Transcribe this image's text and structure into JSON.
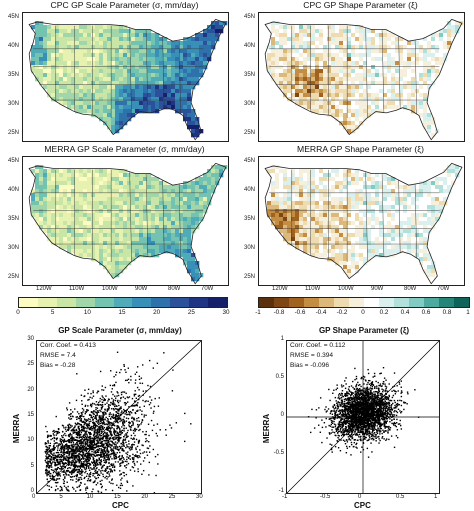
{
  "maps": [
    {
      "title": "CPC GP Scale Parameter (σ, mm/day)",
      "field": "scale",
      "variant": "cpc"
    },
    {
      "title": "CPC GP Shape Parameter (ξ)",
      "field": "shape",
      "variant": "cpc"
    },
    {
      "title": "MERRA GP Scale Parameter (σ, mm/day)",
      "field": "scale",
      "variant": "merra"
    },
    {
      "title": "MERRA GP Shape Parameter (ξ)",
      "field": "shape",
      "variant": "merra"
    }
  ],
  "lat_labels": [
    "45N",
    "40N",
    "35N",
    "30N",
    "25N"
  ],
  "lon_labels": [
    "120W",
    "110W",
    "100W",
    "90W",
    "80W",
    "70W"
  ],
  "colorbars": {
    "scale": {
      "ticks": [
        "0",
        "5",
        "10",
        "15",
        "20",
        "25",
        "30"
      ],
      "colors": [
        "#fbfbc2",
        "#e8f2b0",
        "#c9e6a6",
        "#a1d6aa",
        "#74c3b0",
        "#4fabb8",
        "#3890b8",
        "#2f71aa",
        "#2a519a",
        "#203484",
        "#15206a"
      ]
    },
    "shape": {
      "ticks": [
        "-1",
        "-0.8",
        "-0.6",
        "-0.4",
        "-0.2",
        "0",
        "0.2",
        "0.4",
        "0.6",
        "0.8",
        "1"
      ],
      "colors": [
        "#5b300c",
        "#7e4614",
        "#a0631f",
        "#c38e44",
        "#dcb87a",
        "#eedcb0",
        "#f6efdc",
        "#ffffff",
        "#daf0ee",
        "#b2e1dc",
        "#82cbc3",
        "#4ea99f",
        "#268579",
        "#0f6459"
      ]
    }
  },
  "chart_data": [
    {
      "type": "scatter",
      "title": "GP Scale Parameter (σ, mm/day)",
      "xlabel": "CPC",
      "ylabel": "MERRA",
      "xlim": [
        0,
        30
      ],
      "ylim": [
        0,
        30
      ],
      "xticks": [
        "0",
        "5",
        "10",
        "15",
        "20",
        "25",
        "30"
      ],
      "yticks": [
        "0",
        "5",
        "10",
        "15",
        "20",
        "25",
        "30"
      ],
      "stats": [
        "Corr. Coef. = 0.413",
        "RMSE = 7.4",
        "Bias = -0.28"
      ],
      "distribution": {
        "n_points": 2600,
        "x_center": 10.5,
        "x_spread": 5.0,
        "y_mean_at_x0": 5.5,
        "y_slope": 0.42,
        "y_spread": 4.2
      },
      "one_to_one_line": true
    },
    {
      "type": "scatter",
      "title": "GP Shape Parameter (ξ)",
      "xlabel": "CPC",
      "ylabel": "MERRA",
      "xlim": [
        -1,
        1
      ],
      "ylim": [
        -1,
        1
      ],
      "xticks": [
        "-1",
        "-0.5",
        "0",
        "0.5",
        "1"
      ],
      "yticks": [
        "-1",
        "-0.5",
        "0",
        "0.5",
        "1"
      ],
      "stats": [
        "Corr. Coef. = 0.112",
        "RMSE = 0.394",
        "Bias = -0.096"
      ],
      "distribution": {
        "n_points": 2600,
        "x_center": 0.02,
        "x_spread": 0.2,
        "y_mean_at_x0": 0.05,
        "y_slope": 0.11,
        "y_spread": 0.18
      },
      "one_to_one_line": true,
      "zero_lines": true
    }
  ]
}
